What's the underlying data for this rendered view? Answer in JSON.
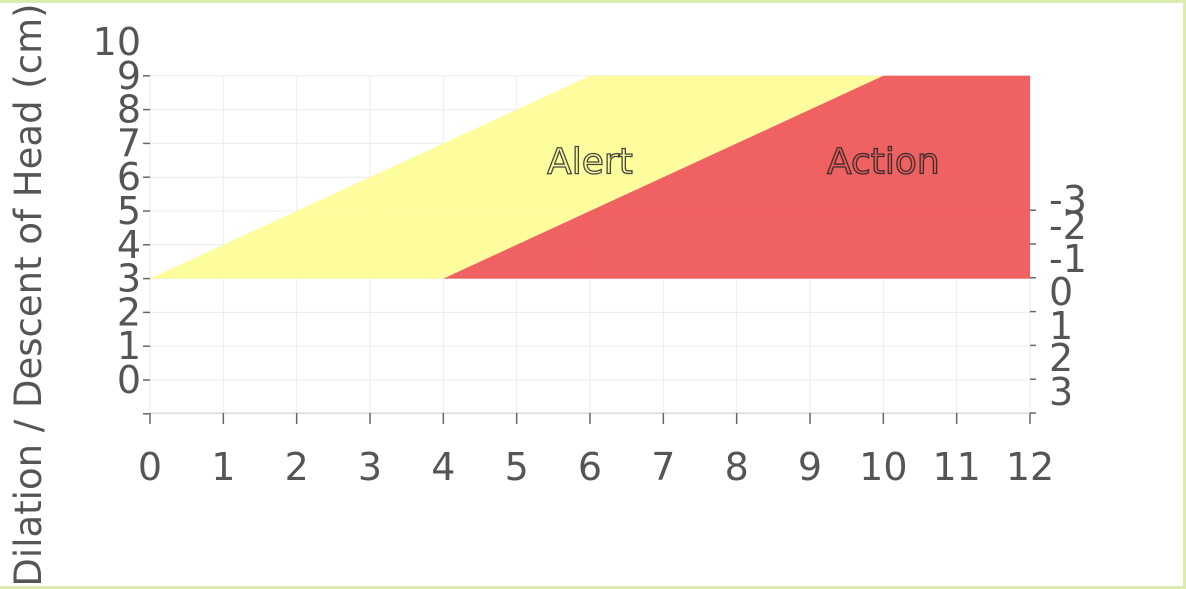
{
  "chart_data": {
    "type": "area",
    "title": "",
    "ylabel": "Dilation / Descent of Head (cm)",
    "xlabel": "",
    "xlim": [
      0,
      12
    ],
    "ylim": [
      0,
      10
    ],
    "x_ticks": [
      "0",
      "1",
      "2",
      "3",
      "4",
      "5",
      "6",
      "7",
      "8",
      "9",
      "10",
      "11",
      "12"
    ],
    "y_ticks_left": [
      "0",
      "1",
      "2",
      "3",
      "4",
      "5",
      "6",
      "7",
      "8",
      "9",
      "10"
    ],
    "y_ticks_right": [
      "-3",
      "-2",
      "-1",
      "0",
      "1",
      "2",
      "3"
    ],
    "grid": true,
    "series": [
      {
        "name": "Alert",
        "color": "#fdfd96",
        "polygon": [
          [
            0,
            3
          ],
          [
            6,
            9
          ],
          [
            10,
            9
          ],
          [
            4,
            3
          ]
        ]
      },
      {
        "name": "Action",
        "color": "#ef5454",
        "polygon": [
          [
            4,
            3
          ],
          [
            10,
            9
          ],
          [
            12,
            9
          ],
          [
            12,
            3
          ]
        ]
      }
    ],
    "annotations": [
      {
        "text": "Alert",
        "x": 6,
        "y": 6.5
      },
      {
        "text": "Action",
        "x": 10,
        "y": 6.5
      }
    ]
  }
}
